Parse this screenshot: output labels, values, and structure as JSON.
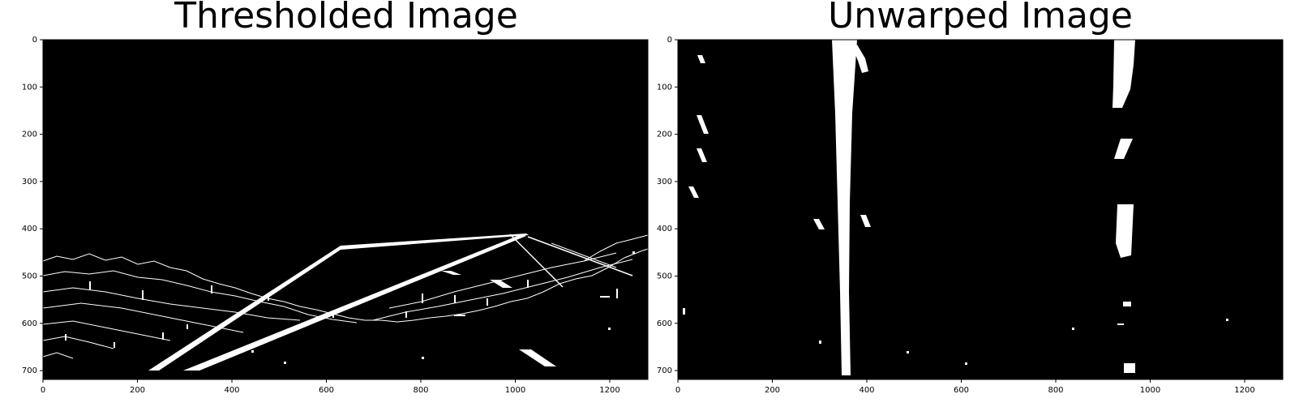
{
  "panels": [
    {
      "title": "Thresholded Image",
      "x_ticks": [
        "0",
        "200",
        "400",
        "600",
        "800",
        "1000",
        "1200"
      ],
      "y_ticks": [
        "0",
        "100",
        "200",
        "300",
        "400",
        "500",
        "600",
        "700"
      ]
    },
    {
      "title": "Unwarped Image",
      "x_ticks": [
        "0",
        "200",
        "400",
        "600",
        "800",
        "1000",
        "1200"
      ],
      "y_ticks": [
        "0",
        "100",
        "200",
        "300",
        "400",
        "500",
        "600",
        "700"
      ]
    }
  ],
  "colors": {
    "image_background": "#000000",
    "edge_pixels": "#ffffff"
  }
}
